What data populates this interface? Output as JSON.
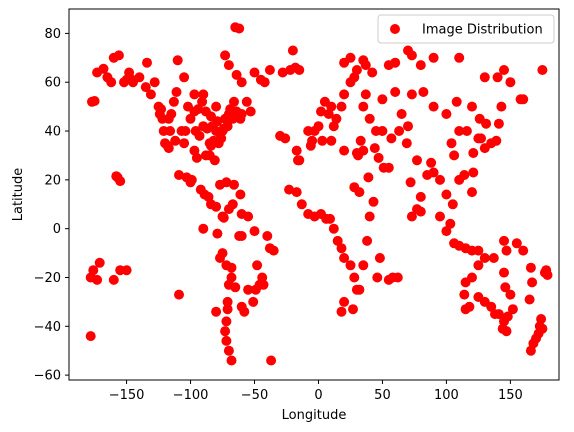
{
  "chart_data": {
    "type": "scatter",
    "title": "",
    "xlabel": "Longitude",
    "ylabel": "Latitude",
    "xlim": [
      -195,
      188
    ],
    "ylim": [
      -62,
      90
    ],
    "xticks": [
      -150,
      -100,
      -50,
      0,
      50,
      100,
      150
    ],
    "yticks": [
      -60,
      -40,
      -20,
      0,
      20,
      40,
      60,
      80
    ],
    "grid": false,
    "legend_position": "top-right",
    "series": [
      {
        "name": "Image Distribution",
        "color": "#ff0000",
        "marker": "circle",
        "points": [
          [
            -177,
            52
          ],
          [
            -175,
            52.3
          ],
          [
            -173,
            64
          ],
          [
            -168,
            65.5
          ],
          [
            -165,
            62
          ],
          [
            -162,
            60
          ],
          [
            -160,
            70
          ],
          [
            -156,
            71
          ],
          [
            -152,
            60
          ],
          [
            -150,
            61
          ],
          [
            -148,
            64
          ],
          [
            -147,
            61.5
          ],
          [
            -145,
            60
          ],
          [
            -140,
            62
          ],
          [
            -135,
            58
          ],
          [
            -134,
            68
          ],
          [
            -131,
            55
          ],
          [
            -128,
            60
          ],
          [
            -125,
            50
          ],
          [
            -124,
            47
          ],
          [
            -123,
            49
          ],
          [
            -122,
            45
          ],
          [
            -121,
            40
          ],
          [
            -120,
            35
          ],
          [
            -118,
            34
          ],
          [
            -117,
            33
          ],
          [
            -116,
            40
          ],
          [
            -115,
            47
          ],
          [
            -113,
            52
          ],
          [
            -111,
            56
          ],
          [
            -110,
            69
          ],
          [
            -105,
            62
          ],
          [
            -104,
            40
          ],
          [
            -100,
            45
          ],
          [
            -97,
            32
          ],
          [
            -95,
            29
          ],
          [
            -94,
            49
          ],
          [
            -90,
            42
          ],
          [
            -88,
            30
          ],
          [
            -87,
            41
          ],
          [
            -85,
            35
          ],
          [
            -83,
            42
          ],
          [
            -81,
            28
          ],
          [
            -80,
            40
          ],
          [
            -79,
            44
          ],
          [
            -77,
            39
          ],
          [
            -75,
            40
          ],
          [
            -74,
            41
          ],
          [
            -73,
            45
          ],
          [
            -71,
            42
          ],
          [
            -70,
            47
          ],
          [
            -67,
            45
          ],
          [
            -64,
            48
          ],
          [
            -61,
            45
          ],
          [
            -56,
            52
          ],
          [
            -53,
            48
          ],
          [
            -60,
            60
          ],
          [
            -64,
            63
          ],
          [
            -70,
            67
          ],
          [
            -73,
            71
          ],
          [
            -65,
            82.5
          ],
          [
            -62,
            82
          ],
          [
            -50,
            64
          ],
          [
            -45,
            61
          ],
          [
            -42,
            60
          ],
          [
            -38,
            65
          ],
          [
            -28,
            64
          ],
          [
            -22,
            65
          ],
          [
            -18,
            66
          ],
          [
            -15,
            65
          ],
          [
            -20,
            73
          ],
          [
            -30,
            38
          ],
          [
            -26,
            37
          ],
          [
            -17,
            32
          ],
          [
            -16,
            28
          ],
          [
            -23,
            16
          ],
          [
            -100,
            19
          ],
          [
            -99,
            20
          ],
          [
            -103,
            21
          ],
          [
            -92,
            16
          ],
          [
            -89,
            14
          ],
          [
            -86,
            13
          ],
          [
            -84,
            10
          ],
          [
            -80,
            9
          ],
          [
            -77,
            18
          ],
          [
            -66,
            18
          ],
          [
            -72,
            19
          ],
          [
            -61,
            14
          ],
          [
            -109,
            22
          ],
          [
            -75,
            5
          ],
          [
            -74,
            4.5
          ],
          [
            -70,
            8
          ],
          [
            -67,
            10
          ],
          [
            -60,
            6
          ],
          [
            -55,
            5
          ],
          [
            -79,
            -2
          ],
          [
            -77,
            -12
          ],
          [
            -75,
            -10
          ],
          [
            -72,
            -15
          ],
          [
            -68,
            -16
          ],
          [
            -62,
            -3
          ],
          [
            -60,
            -3
          ],
          [
            -50,
            -1
          ],
          [
            -48,
            -15
          ],
          [
            -44,
            -20
          ],
          [
            -43,
            -23
          ],
          [
            -46,
            -23
          ],
          [
            -49,
            -25
          ],
          [
            -51,
            -30
          ],
          [
            -55,
            -25
          ],
          [
            -58,
            -34
          ],
          [
            -60,
            -32
          ],
          [
            -65,
            -24
          ],
          [
            -68,
            -20
          ],
          [
            -70,
            -23
          ],
          [
            -71,
            -30
          ],
          [
            -71,
            -33
          ],
          [
            -72,
            -38
          ],
          [
            -73,
            -42
          ],
          [
            -72,
            -46
          ],
          [
            -70,
            -50
          ],
          [
            -68,
            -54
          ],
          [
            -38,
            -8
          ],
          [
            -35,
            -9
          ],
          [
            -40,
            -3
          ],
          [
            -37,
            -54
          ],
          [
            -80,
            -34
          ],
          [
            -90,
            0
          ],
          [
            -109,
            -27
          ],
          [
            -176,
            -17
          ],
          [
            -178,
            -20
          ],
          [
            -173,
            -21
          ],
          [
            -171,
            -14
          ],
          [
            -160,
            -21
          ],
          [
            -155,
            -17
          ],
          [
            -150,
            -17
          ],
          [
            -157,
            21
          ],
          [
            -158,
            21.5
          ],
          [
            -155,
            19.5
          ],
          [
            -178,
            -44
          ],
          [
            -5,
            36
          ],
          [
            -8,
            40
          ],
          [
            -3,
            40
          ],
          [
            0,
            42
          ],
          [
            2,
            48
          ],
          [
            5,
            52
          ],
          [
            8,
            47
          ],
          [
            10,
            50
          ],
          [
            12,
            42
          ],
          [
            14,
            45
          ],
          [
            18,
            50
          ],
          [
            20,
            55
          ],
          [
            25,
            60
          ],
          [
            28,
            62
          ],
          [
            20,
            68
          ],
          [
            25,
            70
          ],
          [
            30,
            65
          ],
          [
            35,
            50
          ],
          [
            37,
            55
          ],
          [
            40,
            45
          ],
          [
            45,
            40
          ],
          [
            50,
            40
          ],
          [
            55,
            25
          ],
          [
            51,
            25
          ],
          [
            47,
            29
          ],
          [
            44,
            33
          ],
          [
            39,
            21
          ],
          [
            35,
            32
          ],
          [
            33,
            36
          ],
          [
            30,
            31
          ],
          [
            32,
            15
          ],
          [
            31,
            30
          ],
          [
            28,
            17
          ],
          [
            20,
            32
          ],
          [
            10,
            36
          ],
          [
            3,
            36
          ],
          [
            -6,
            34
          ],
          [
            -15,
            28
          ],
          [
            -17,
            15
          ],
          [
            -13,
            10
          ],
          [
            -8,
            6
          ],
          [
            -3,
            5
          ],
          [
            2,
            6
          ],
          [
            6,
            4
          ],
          [
            9,
            4
          ],
          [
            12,
            0
          ],
          [
            15,
            -5
          ],
          [
            18,
            -8
          ],
          [
            20,
            -12
          ],
          [
            25,
            -15
          ],
          [
            28,
            -20
          ],
          [
            30,
            -25
          ],
          [
            27,
            -33
          ],
          [
            18,
            -34
          ],
          [
            20,
            -30
          ],
          [
            32,
            -25
          ],
          [
            35,
            -15
          ],
          [
            38,
            -5
          ],
          [
            40,
            5
          ],
          [
            43,
            11
          ],
          [
            48,
            -12
          ],
          [
            46,
            -20
          ],
          [
            55,
            -21
          ],
          [
            58,
            -20
          ],
          [
            62,
            -20
          ],
          [
            73,
            5
          ],
          [
            72,
            19
          ],
          [
            77,
            28
          ],
          [
            80,
            13
          ],
          [
            77,
            8
          ],
          [
            80,
            7
          ],
          [
            85,
            22
          ],
          [
            88,
            27
          ],
          [
            90,
            23
          ],
          [
            95,
            20
          ],
          [
            100,
            14
          ],
          [
            103,
            2
          ],
          [
            105,
            10
          ],
          [
            106,
            -6
          ],
          [
            110,
            -7
          ],
          [
            115,
            -8
          ],
          [
            120,
            -9
          ],
          [
            125,
            -9
          ],
          [
            100,
            -1
          ],
          [
            95,
            5
          ],
          [
            120,
            15
          ],
          [
            121,
            23
          ],
          [
            114,
            22
          ],
          [
            110,
            20
          ],
          [
            106,
            30
          ],
          [
            104,
            35
          ],
          [
            110,
            40
          ],
          [
            116,
            40
          ],
          [
            121,
            31
          ],
          [
            125,
            37
          ],
          [
            127,
            37
          ],
          [
            130,
            33
          ],
          [
            135,
            35
          ],
          [
            139,
            36
          ],
          [
            141,
            43
          ],
          [
            143,
            50
          ],
          [
            131,
            43
          ],
          [
            126,
            45
          ],
          [
            120,
            50
          ],
          [
            108,
            52
          ],
          [
            100,
            47
          ],
          [
            90,
            50
          ],
          [
            82,
            56
          ],
          [
            73,
            55
          ],
          [
            60,
            56
          ],
          [
            65,
            47
          ],
          [
            70,
            42
          ],
          [
            69,
            35
          ],
          [
            63,
            40
          ],
          [
            57,
            37
          ],
          [
            50,
            53
          ],
          [
            37,
            67
          ],
          [
            35,
            69
          ],
          [
            42,
            64
          ],
          [
            55,
            67
          ],
          [
            60,
            68
          ],
          [
            73,
            71
          ],
          [
            70,
            73
          ],
          [
            80,
            67
          ],
          [
            90,
            70
          ],
          [
            110,
            70
          ],
          [
            130,
            62
          ],
          [
            140,
            62
          ],
          [
            150,
            60
          ],
          [
            160,
            53
          ],
          [
            158,
            53
          ],
          [
            175,
            65
          ],
          [
            145,
            65
          ],
          [
            125,
            -15
          ],
          [
            130,
            -12
          ],
          [
            137,
            -12
          ],
          [
            145,
            -18
          ],
          [
            146,
            -24
          ],
          [
            150,
            -27
          ],
          [
            152,
            -33
          ],
          [
            148,
            -36
          ],
          [
            145,
            -38
          ],
          [
            141,
            -35
          ],
          [
            138,
            -35
          ],
          [
            135,
            -32
          ],
          [
            130,
            -30
          ],
          [
            125,
            -28
          ],
          [
            118,
            -32
          ],
          [
            115,
            -33
          ],
          [
            114,
            -27
          ],
          [
            115,
            -22
          ],
          [
            120,
            -20
          ],
          [
            147,
            -42
          ],
          [
            144,
            -41
          ],
          [
            145,
            -5
          ],
          [
            147,
            -9
          ],
          [
            155,
            -6
          ],
          [
            160,
            -9
          ],
          [
            166,
            -16
          ],
          [
            167,
            -22
          ],
          [
            165,
            -29
          ],
          [
            174,
            -37
          ],
          [
            173,
            -40
          ],
          [
            175,
            -41
          ],
          [
            172,
            -43
          ],
          [
            170,
            -45
          ],
          [
            168,
            -47
          ],
          [
            166,
            -50
          ],
          [
            177,
            -18
          ],
          [
            178,
            -17
          ],
          [
            179,
            -19
          ],
          [
            -107,
            40
          ],
          [
            -105,
            35
          ],
          [
            -112,
            36
          ],
          [
            -117,
            45
          ],
          [
            -102,
            50
          ],
          [
            -97,
            55
          ],
          [
            -90,
            55
          ],
          [
            -80,
            50
          ],
          [
            -84,
            46
          ],
          [
            -93,
            38
          ],
          [
            -97,
            48
          ],
          [
            -91,
            52
          ],
          [
            -88,
            48
          ],
          [
            -96,
            40
          ],
          [
            -85,
            30
          ],
          [
            -84,
            34
          ],
          [
            -82,
            36
          ],
          [
            -78,
            35
          ],
          [
            -76,
            37
          ],
          [
            -71,
            44
          ],
          [
            -69,
            49
          ],
          [
            -66,
            52
          ],
          [
            -60,
            47
          ]
        ]
      }
    ]
  }
}
